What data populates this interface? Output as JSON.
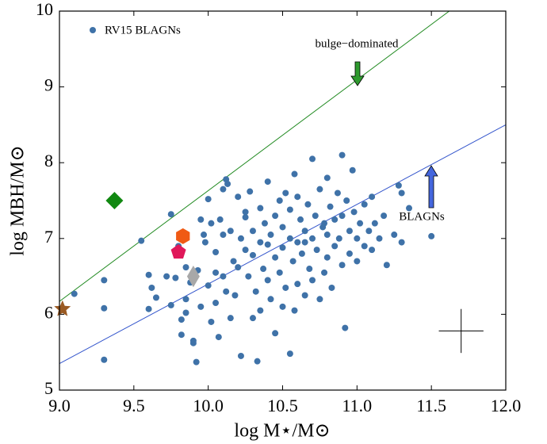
{
  "chart_data": {
    "type": "scatter",
    "x_label": "log M⋆/M⊙",
    "y_label": "log MBH/M⊙",
    "xlim": [
      9.0,
      12.0
    ],
    "ylim": [
      5,
      10
    ],
    "xticks": [
      {
        "value": 9.0,
        "label": "9.0"
      },
      {
        "value": 9.5,
        "label": "9.5"
      },
      {
        "value": 10.0,
        "label": "10.0"
      },
      {
        "value": 10.5,
        "label": "10.5"
      },
      {
        "value": 11.0,
        "label": "11.0"
      },
      {
        "value": 11.5,
        "label": "11.5"
      },
      {
        "value": 12.0,
        "label": "12.0"
      }
    ],
    "yticks": [
      5,
      6,
      7,
      8,
      9,
      10
    ],
    "legend": "upper left",
    "series": [
      {
        "name": "RV15 BLAGNs",
        "color": "#3f72a8",
        "x": [
          9.1,
          9.3,
          9.3,
          9.3,
          9.55,
          9.6,
          9.62,
          9.6,
          9.65,
          9.72,
          9.75,
          9.75,
          9.78,
          9.8,
          9.82,
          9.82,
          9.85,
          9.85,
          9.88,
          9.9,
          9.9,
          9.92,
          9.93,
          9.95,
          9.95,
          9.97,
          9.98,
          10.0,
          10.0,
          10.02,
          10.02,
          10.05,
          10.05,
          10.07,
          10.08,
          10.1,
          10.1,
          10.1,
          10.12,
          10.12,
          10.13,
          10.15,
          10.15,
          10.17,
          10.18,
          10.2,
          10.2,
          10.22,
          10.22,
          10.25,
          10.25,
          10.27,
          10.28,
          10.3,
          10.3,
          10.3,
          10.32,
          10.33,
          10.35,
          10.35,
          10.37,
          10.38,
          10.4,
          10.4,
          10.4,
          10.42,
          10.42,
          10.45,
          10.45,
          10.45,
          10.48,
          10.48,
          10.5,
          10.5,
          10.5,
          10.52,
          10.52,
          10.55,
          10.55,
          10.55,
          10.57,
          10.58,
          10.6,
          10.6,
          10.6,
          10.62,
          10.63,
          10.65,
          10.65,
          10.67,
          10.68,
          10.7,
          10.7,
          10.7,
          10.72,
          10.73,
          10.75,
          10.75,
          10.77,
          10.78,
          10.8,
          10.8,
          10.8,
          10.82,
          10.83,
          10.85,
          10.85,
          10.87,
          10.88,
          10.9,
          10.9,
          10.9,
          10.92,
          10.93,
          10.95,
          10.95,
          10.97,
          10.98,
          11.0,
          11.0,
          11.02,
          11.05,
          11.05,
          11.08,
          11.1,
          11.1,
          11.12,
          11.15,
          11.18,
          11.2,
          11.25,
          11.28,
          11.3,
          11.3,
          11.35,
          11.5,
          10.25,
          10.05,
          9.85,
          10.35,
          10.65,
          10.78,
          10.58
        ],
        "values": [
          6.27,
          6.45,
          6.08,
          5.4,
          6.97,
          6.52,
          6.35,
          6.07,
          6.22,
          6.5,
          7.32,
          6.12,
          6.48,
          6.9,
          5.93,
          5.73,
          6.02,
          6.62,
          6.42,
          5.65,
          5.62,
          5.37,
          6.58,
          7.25,
          6.1,
          7.05,
          6.95,
          7.52,
          6.38,
          7.2,
          5.9,
          6.82,
          6.15,
          5.7,
          7.25,
          7.65,
          7.05,
          6.5,
          7.78,
          6.3,
          7.72,
          7.1,
          5.95,
          6.7,
          6.25,
          7.55,
          6.62,
          7.0,
          5.45,
          7.35,
          6.85,
          6.5,
          7.62,
          7.1,
          6.78,
          5.95,
          6.3,
          5.38,
          7.4,
          6.95,
          6.6,
          7.2,
          7.75,
          6.92,
          6.45,
          7.05,
          6.2,
          7.3,
          6.75,
          5.75,
          7.5,
          6.55,
          7.15,
          6.88,
          6.1,
          7.6,
          6.35,
          7.0,
          5.48,
          7.38,
          6.7,
          6.05,
          7.55,
          6.95,
          6.4,
          7.25,
          6.8,
          7.1,
          6.25,
          7.45,
          6.6,
          8.05,
          7.0,
          6.45,
          7.3,
          6.85,
          7.65,
          6.2,
          7.15,
          6.55,
          7.8,
          7.05,
          6.75,
          7.42,
          6.35,
          7.25,
          6.9,
          7.6,
          7.0,
          8.1,
          7.3,
          6.65,
          5.82,
          7.5,
          7.1,
          6.8,
          7.9,
          7.35,
          7.0,
          6.7,
          7.2,
          7.45,
          6.9,
          7.1,
          7.55,
          6.85,
          7.2,
          7.0,
          7.3,
          6.65,
          7.05,
          7.7,
          7.6,
          6.95,
          7.4,
          7.03,
          7.28,
          6.55,
          6.2,
          6.05,
          6.95,
          7.2,
          7.85
        ]
      }
    ],
    "markers": [
      {
        "shape": "star",
        "x": 9.02,
        "y": 6.07,
        "color": "#9a5a23"
      },
      {
        "shape": "diamond",
        "x": 9.37,
        "y": 7.5,
        "color": "#118811"
      },
      {
        "shape": "hexagon",
        "x": 9.83,
        "y": 7.03,
        "color": "#f05a14"
      },
      {
        "shape": "pentagon",
        "x": 9.8,
        "y": 6.82,
        "color": "#e0185a"
      },
      {
        "shape": "thin-diamond",
        "x": 9.9,
        "y": 6.5,
        "color": "#a8a8a8"
      }
    ],
    "lines": [
      {
        "x": [
          9.0,
          11.62
        ],
        "y": [
          6.17,
          10
        ],
        "color": "#228b22"
      },
      {
        "x": [
          9.0,
          12.0
        ],
        "y": [
          5.35,
          8.5
        ],
        "color": "#3355cc"
      }
    ],
    "error_bar": {
      "x": 11.7,
      "y": 5.78,
      "xerr": 0.15,
      "yerr": 0.29
    },
    "annotations": [
      "bulge−dominated",
      "BLAGNs"
    ]
  }
}
